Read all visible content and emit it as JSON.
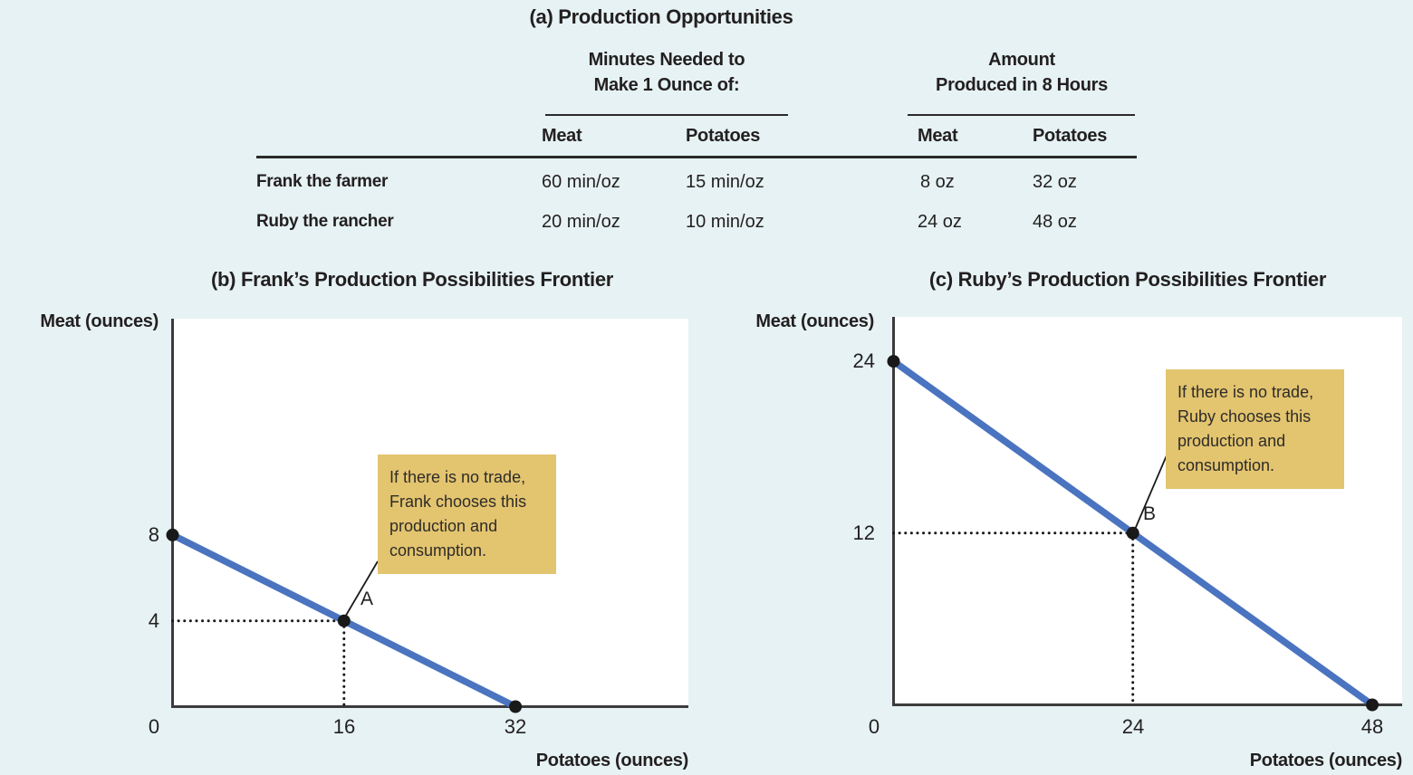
{
  "figure": {
    "background_color": "#e6f2f3",
    "ppf_line_color": "#4a74c0",
    "callout_color": "#e3c46f",
    "text_color": "#231f20"
  },
  "chart_data": [
    {
      "type": "table",
      "title": "(a) Production Opportunities",
      "column_group_headings": [
        [
          "Minutes Needed to",
          "Make 1 Ounce of:"
        ],
        [
          "Amount",
          "Produced in 8 Hours"
        ]
      ],
      "columns": [
        "Meat",
        "Potatoes",
        "Meat",
        "Potatoes"
      ],
      "rows": [
        {
          "label": "Frank the farmer",
          "values": [
            "60 min/oz",
            "15 min/oz",
            "8 oz",
            "32 oz"
          ]
        },
        {
          "label": "Ruby the rancher",
          "values": [
            "20 min/oz",
            "10 min/oz",
            "24 oz",
            "48 oz"
          ]
        }
      ]
    },
    {
      "type": "line",
      "title": "(b) Frank’s Production Possibilities Frontier",
      "xlabel": "Potatoes (ounces)",
      "ylabel": "Meat (ounces)",
      "x": [
        0,
        32
      ],
      "y": [
        8,
        0
      ],
      "xticks": [
        "0",
        "16",
        "32"
      ],
      "yticks": [
        "8",
        "4"
      ],
      "xlim": [
        0,
        48
      ],
      "ylim": [
        0,
        18
      ],
      "grid": false,
      "legend": null,
      "points": [
        {
          "label": "A",
          "x": 16,
          "y": 4
        }
      ],
      "annotation_lines": [
        "If there is no trade,",
        "Frank chooses this",
        "production and",
        "consumption."
      ]
    },
    {
      "type": "line",
      "title": "(c) Ruby’s Production Possibilities Frontier",
      "xlabel": "Potatoes (ounces)",
      "ylabel": "Meat (ounces)",
      "x": [
        0,
        48
      ],
      "y": [
        24,
        0
      ],
      "xticks": [
        "0",
        "24",
        "48"
      ],
      "yticks": [
        "24",
        "12"
      ],
      "xlim": [
        0,
        51
      ],
      "ylim": [
        0,
        27
      ],
      "grid": false,
      "legend": null,
      "points": [
        {
          "label": "B",
          "x": 24,
          "y": 12
        }
      ],
      "annotation_lines": [
        "If there is no trade,",
        "Ruby chooses this",
        "production and",
        "consumption."
      ]
    }
  ]
}
